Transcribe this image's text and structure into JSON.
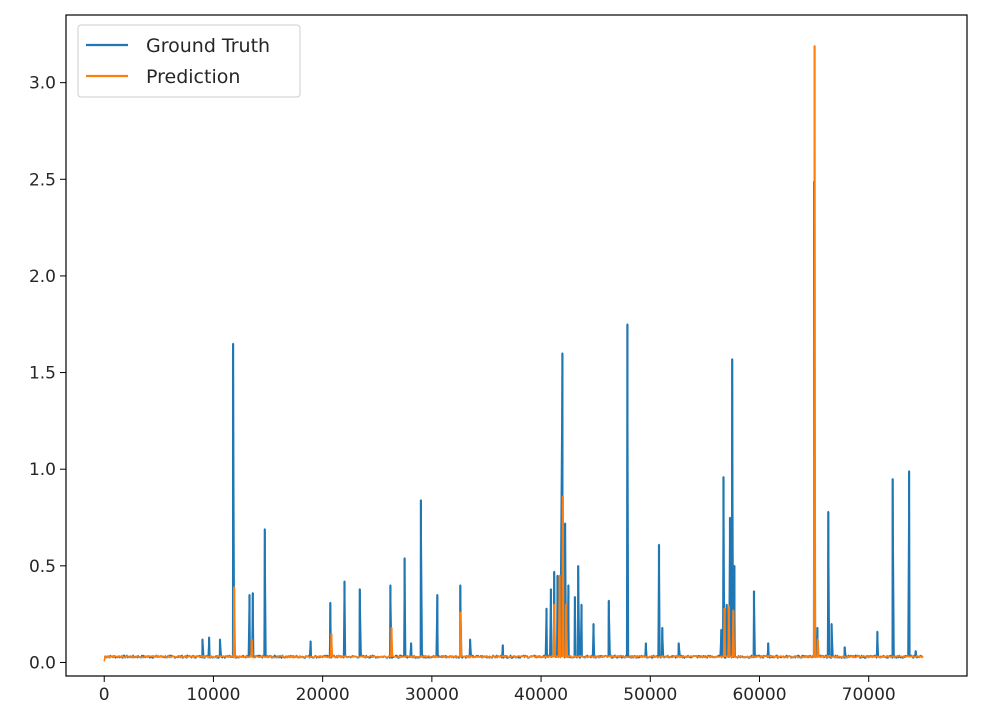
{
  "chart_data": {
    "type": "line",
    "title": "",
    "xlabel": "",
    "ylabel": "",
    "xlim": [
      -3500,
      79000
    ],
    "ylim": [
      -0.07,
      3.35
    ],
    "xticks": [
      0,
      10000,
      20000,
      30000,
      40000,
      50000,
      60000,
      70000
    ],
    "xtick_labels": [
      "0",
      "10000",
      "20000",
      "30000",
      "40000",
      "50000",
      "60000",
      "70000"
    ],
    "yticks": [
      0.0,
      0.5,
      1.0,
      1.5,
      2.0,
      2.5,
      3.0
    ],
    "ytick_labels": [
      "0.0",
      "0.5",
      "1.0",
      "1.5",
      "2.0",
      "2.5",
      "3.0"
    ],
    "grid": false,
    "legend_position": "top-left",
    "baseline": 0.03,
    "x_max": 75000,
    "series": [
      {
        "name": "Ground Truth",
        "color": "#1f77b4",
        "spikes": [
          [
            9000,
            0.12
          ],
          [
            9600,
            0.13
          ],
          [
            10600,
            0.12
          ],
          [
            11800,
            1.65
          ],
          [
            13300,
            0.35
          ],
          [
            13600,
            0.36
          ],
          [
            14700,
            0.69
          ],
          [
            18900,
            0.11
          ],
          [
            20700,
            0.31
          ],
          [
            22000,
            0.42
          ],
          [
            23400,
            0.38
          ],
          [
            26200,
            0.4
          ],
          [
            27500,
            0.54
          ],
          [
            28100,
            0.1
          ],
          [
            29000,
            0.84
          ],
          [
            30500,
            0.35
          ],
          [
            32600,
            0.4
          ],
          [
            33500,
            0.12
          ],
          [
            36500,
            0.09
          ],
          [
            40500,
            0.28
          ],
          [
            40900,
            0.38
          ],
          [
            41200,
            0.47
          ],
          [
            41500,
            0.45
          ],
          [
            41800,
            0.41
          ],
          [
            41950,
            1.6
          ],
          [
            42200,
            0.72
          ],
          [
            42500,
            0.4
          ],
          [
            43100,
            0.34
          ],
          [
            43400,
            0.5
          ],
          [
            43700,
            0.3
          ],
          [
            44800,
            0.2
          ],
          [
            46200,
            0.32
          ],
          [
            47900,
            1.75
          ],
          [
            49600,
            0.1
          ],
          [
            50800,
            0.61
          ],
          [
            51100,
            0.18
          ],
          [
            52600,
            0.1
          ],
          [
            56500,
            0.17
          ],
          [
            56700,
            0.96
          ],
          [
            57000,
            0.3
          ],
          [
            57300,
            0.75
          ],
          [
            57500,
            1.57
          ],
          [
            57700,
            0.5
          ],
          [
            59500,
            0.37
          ],
          [
            60800,
            0.1
          ],
          [
            65000,
            2.49
          ],
          [
            65300,
            0.18
          ],
          [
            66300,
            0.78
          ],
          [
            66600,
            0.2
          ],
          [
            67800,
            0.08
          ],
          [
            70800,
            0.16
          ],
          [
            72200,
            0.95
          ],
          [
            73700,
            0.99
          ],
          [
            74300,
            0.06
          ]
        ]
      },
      {
        "name": "Prediction",
        "color": "#ff7f0e",
        "spikes": [
          [
            11900,
            0.39
          ],
          [
            13500,
            0.12
          ],
          [
            20800,
            0.15
          ],
          [
            26300,
            0.18
          ],
          [
            32600,
            0.26
          ],
          [
            41200,
            0.3
          ],
          [
            41700,
            0.45
          ],
          [
            42000,
            0.86
          ],
          [
            42300,
            0.3
          ],
          [
            56800,
            0.28
          ],
          [
            57200,
            0.29
          ],
          [
            57600,
            0.27
          ],
          [
            65050,
            3.19
          ],
          [
            65350,
            0.12
          ]
        ]
      }
    ]
  }
}
